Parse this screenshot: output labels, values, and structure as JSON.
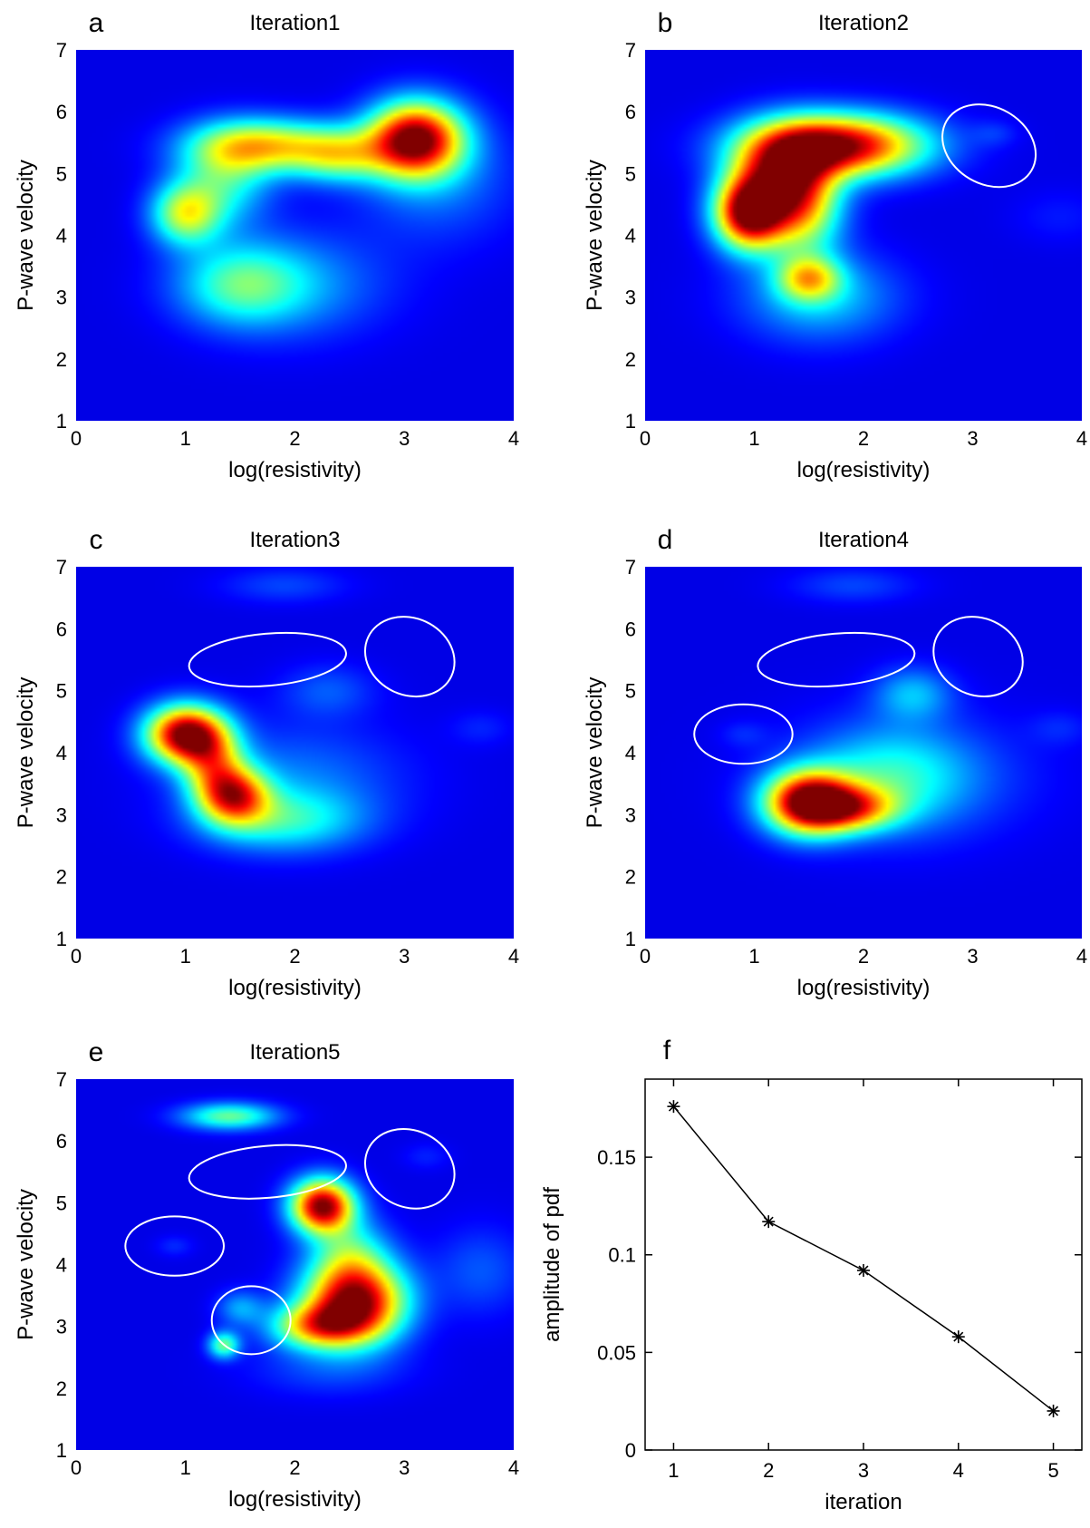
{
  "colors": {
    "background": "#ffffff",
    "heatmap_base": "#0a2aa6",
    "ellipse": "#ffffff",
    "line": "#000000"
  },
  "chart_data": [
    {
      "type": "heatmap",
      "letter": "a",
      "title": "Iteration1",
      "xlabel": "log(resistivity)",
      "ylabel": "P-wave velocity",
      "xlim": [
        0,
        4
      ],
      "ylim": [
        1,
        7
      ],
      "xticks": [
        "0",
        "1",
        "2",
        "3",
        "4"
      ],
      "yticks": [
        "1",
        "2",
        "3",
        "4",
        "5",
        "6",
        "7"
      ],
      "colormap": "jet",
      "blobs": [
        {
          "x": 3.1,
          "y": 5.55,
          "a": 1.0,
          "sx": 0.3,
          "sy": 0.42
        },
        {
          "x": 1.7,
          "y": 5.45,
          "a": 0.58,
          "sx": 0.45,
          "sy": 0.3
        },
        {
          "x": 2.4,
          "y": 5.3,
          "a": 0.42,
          "sx": 0.3,
          "sy": 0.3
        },
        {
          "x": 1.0,
          "y": 4.35,
          "a": 0.5,
          "sx": 0.22,
          "sy": 0.35
        },
        {
          "x": 1.35,
          "y": 4.9,
          "a": 0.32,
          "sx": 0.3,
          "sy": 0.5
        },
        {
          "x": 1.5,
          "y": 3.2,
          "a": 0.32,
          "sx": 0.4,
          "sy": 0.45
        },
        {
          "x": 2.0,
          "y": 3.2,
          "a": 0.18,
          "sx": 0.6,
          "sy": 0.6
        },
        {
          "x": 3.3,
          "y": 4.9,
          "a": 0.15,
          "sx": 0.5,
          "sy": 0.7
        }
      ],
      "ellipses": []
    },
    {
      "type": "heatmap",
      "letter": "b",
      "title": "Iteration2",
      "xlabel": "log(resistivity)",
      "ylabel": "P-wave velocity",
      "xlim": [
        0,
        4
      ],
      "ylim": [
        1,
        7
      ],
      "xticks": [
        "0",
        "1",
        "2",
        "3",
        "4"
      ],
      "yticks": [
        "1",
        "2",
        "3",
        "4",
        "5",
        "6",
        "7"
      ],
      "colormap": "jet",
      "blobs": [
        {
          "x": 1.75,
          "y": 5.45,
          "a": 1.0,
          "sx": 0.55,
          "sy": 0.35
        },
        {
          "x": 0.95,
          "y": 4.35,
          "a": 0.95,
          "sx": 0.22,
          "sy": 0.4
        },
        {
          "x": 1.2,
          "y": 4.9,
          "a": 0.6,
          "sx": 0.3,
          "sy": 0.5
        },
        {
          "x": 1.45,
          "y": 4.5,
          "a": 0.5,
          "sx": 0.25,
          "sy": 0.6
        },
        {
          "x": 1.5,
          "y": 3.3,
          "a": 0.45,
          "sx": 0.2,
          "sy": 0.25
        },
        {
          "x": 1.6,
          "y": 3.0,
          "a": 0.25,
          "sx": 0.5,
          "sy": 0.5
        },
        {
          "x": 3.2,
          "y": 5.65,
          "a": 0.07,
          "sx": 0.15,
          "sy": 0.15
        },
        {
          "x": 3.8,
          "y": 4.3,
          "a": 0.05,
          "sx": 0.3,
          "sy": 0.3
        }
      ],
      "ellipses": [
        {
          "x": 3.15,
          "y": 5.45,
          "rx": 0.45,
          "ry": 0.62,
          "rot": 30
        }
      ]
    },
    {
      "type": "heatmap",
      "letter": "c",
      "title": "Iteration3",
      "xlabel": "log(resistivity)",
      "ylabel": "P-wave velocity",
      "xlim": [
        0,
        4
      ],
      "ylim": [
        1,
        7
      ],
      "xticks": [
        "0",
        "1",
        "2",
        "3",
        "4"
      ],
      "yticks": [
        "1",
        "2",
        "3",
        "4",
        "5",
        "6",
        "7"
      ],
      "colormap": "jet",
      "blobs": [
        {
          "x": 1.0,
          "y": 4.3,
          "a": 1.0,
          "sx": 0.25,
          "sy": 0.32
        },
        {
          "x": 1.45,
          "y": 3.3,
          "a": 0.68,
          "sx": 0.22,
          "sy": 0.32
        },
        {
          "x": 1.25,
          "y": 3.8,
          "a": 0.45,
          "sx": 0.2,
          "sy": 0.4
        },
        {
          "x": 1.9,
          "y": 2.9,
          "a": 0.3,
          "sx": 0.5,
          "sy": 0.35
        },
        {
          "x": 2.0,
          "y": 3.6,
          "a": 0.15,
          "sx": 0.7,
          "sy": 0.6
        },
        {
          "x": 2.3,
          "y": 5.0,
          "a": 0.12,
          "sx": 0.3,
          "sy": 0.3
        },
        {
          "x": 1.9,
          "y": 6.7,
          "a": 0.1,
          "sx": 0.4,
          "sy": 0.2
        },
        {
          "x": 3.7,
          "y": 4.4,
          "a": 0.06,
          "sx": 0.2,
          "sy": 0.2
        }
      ],
      "ellipses": [
        {
          "x": 1.75,
          "y": 5.5,
          "rx": 0.72,
          "ry": 0.42,
          "rot": -5
        },
        {
          "x": 3.05,
          "y": 5.55,
          "rx": 0.42,
          "ry": 0.62,
          "rot": 25
        }
      ]
    },
    {
      "type": "heatmap",
      "letter": "d",
      "title": "Iteration4",
      "xlabel": "log(resistivity)",
      "ylabel": "P-wave velocity",
      "xlim": [
        0,
        4
      ],
      "ylim": [
        1,
        7
      ],
      "xticks": [
        "0",
        "1",
        "2",
        "3",
        "4"
      ],
      "yticks": [
        "1",
        "2",
        "3",
        "4",
        "5",
        "6",
        "7"
      ],
      "colormap": "jet",
      "blobs": [
        {
          "x": 1.5,
          "y": 3.2,
          "a": 1.0,
          "sx": 0.28,
          "sy": 0.35
        },
        {
          "x": 1.9,
          "y": 3.1,
          "a": 0.5,
          "sx": 0.3,
          "sy": 0.25
        },
        {
          "x": 2.25,
          "y": 3.6,
          "a": 0.25,
          "sx": 0.5,
          "sy": 0.55
        },
        {
          "x": 2.45,
          "y": 4.95,
          "a": 0.22,
          "sx": 0.25,
          "sy": 0.3
        },
        {
          "x": 2.4,
          "y": 3.6,
          "a": 0.12,
          "sx": 0.8,
          "sy": 0.7
        },
        {
          "x": 1.9,
          "y": 6.7,
          "a": 0.1,
          "sx": 0.4,
          "sy": 0.2
        },
        {
          "x": 0.9,
          "y": 4.3,
          "a": 0.06,
          "sx": 0.15,
          "sy": 0.15
        },
        {
          "x": 3.8,
          "y": 4.4,
          "a": 0.06,
          "sx": 0.2,
          "sy": 0.2
        }
      ],
      "ellipses": [
        {
          "x": 1.75,
          "y": 5.5,
          "rx": 0.72,
          "ry": 0.42,
          "rot": -5
        },
        {
          "x": 3.05,
          "y": 5.55,
          "rx": 0.42,
          "ry": 0.62,
          "rot": 25
        },
        {
          "x": 0.9,
          "y": 4.3,
          "rx": 0.45,
          "ry": 0.48,
          "rot": 0
        }
      ]
    },
    {
      "type": "heatmap",
      "letter": "e",
      "title": "Iteration5",
      "xlabel": "log(resistivity)",
      "ylabel": "P-wave velocity",
      "xlim": [
        0,
        4
      ],
      "ylim": [
        1,
        7
      ],
      "xticks": [
        "0",
        "1",
        "2",
        "3",
        "4"
      ],
      "yticks": [
        "1",
        "2",
        "3",
        "4",
        "5",
        "6",
        "7"
      ],
      "colormap": "jet",
      "blobs": [
        {
          "x": 2.25,
          "y": 4.95,
          "a": 1.0,
          "sx": 0.2,
          "sy": 0.3
        },
        {
          "x": 2.55,
          "y": 3.4,
          "a": 1.0,
          "sx": 0.32,
          "sy": 0.45
        },
        {
          "x": 2.2,
          "y": 3.0,
          "a": 0.55,
          "sx": 0.3,
          "sy": 0.25
        },
        {
          "x": 1.4,
          "y": 6.4,
          "a": 0.42,
          "sx": 0.3,
          "sy": 0.15
        },
        {
          "x": 1.35,
          "y": 2.7,
          "a": 0.42,
          "sx": 0.1,
          "sy": 0.15
        },
        {
          "x": 1.5,
          "y": 3.3,
          "a": 0.2,
          "sx": 0.15,
          "sy": 0.2
        },
        {
          "x": 2.5,
          "y": 4.2,
          "a": 0.3,
          "sx": 0.25,
          "sy": 0.4
        },
        {
          "x": 3.7,
          "y": 3.9,
          "a": 0.12,
          "sx": 0.3,
          "sy": 0.5
        },
        {
          "x": 0.9,
          "y": 4.3,
          "a": 0.07,
          "sx": 0.12,
          "sy": 0.12
        },
        {
          "x": 3.2,
          "y": 5.75,
          "a": 0.06,
          "sx": 0.15,
          "sy": 0.15
        },
        {
          "x": 2.3,
          "y": 2.3,
          "a": 0.1,
          "sx": 0.5,
          "sy": 0.3
        }
      ],
      "ellipses": [
        {
          "x": 1.75,
          "y": 5.5,
          "rx": 0.72,
          "ry": 0.42,
          "rot": -5
        },
        {
          "x": 3.05,
          "y": 5.55,
          "rx": 0.42,
          "ry": 0.62,
          "rot": 25
        },
        {
          "x": 0.9,
          "y": 4.3,
          "rx": 0.45,
          "ry": 0.48,
          "rot": 0
        },
        {
          "x": 1.6,
          "y": 3.1,
          "rx": 0.36,
          "ry": 0.55,
          "rot": 0
        }
      ]
    },
    {
      "type": "line",
      "letter": "f",
      "title": "",
      "xlabel": "iteration",
      "ylabel": "amplitude of pdf",
      "xlim": [
        0.7,
        5.3
      ],
      "ylim": [
        0,
        0.19
      ],
      "xticks": [
        1,
        2,
        3,
        4,
        5
      ],
      "xtick_labels": [
        "1",
        "2",
        "3",
        "4",
        "5"
      ],
      "yticks": [
        0,
        0.05,
        0.1,
        0.15
      ],
      "ytick_labels": [
        "0",
        "0.05",
        "0.1",
        "0.15"
      ],
      "x": [
        1,
        2,
        3,
        4,
        5
      ],
      "values": [
        0.176,
        0.117,
        0.092,
        0.058,
        0.02
      ],
      "marker": "*"
    }
  ]
}
